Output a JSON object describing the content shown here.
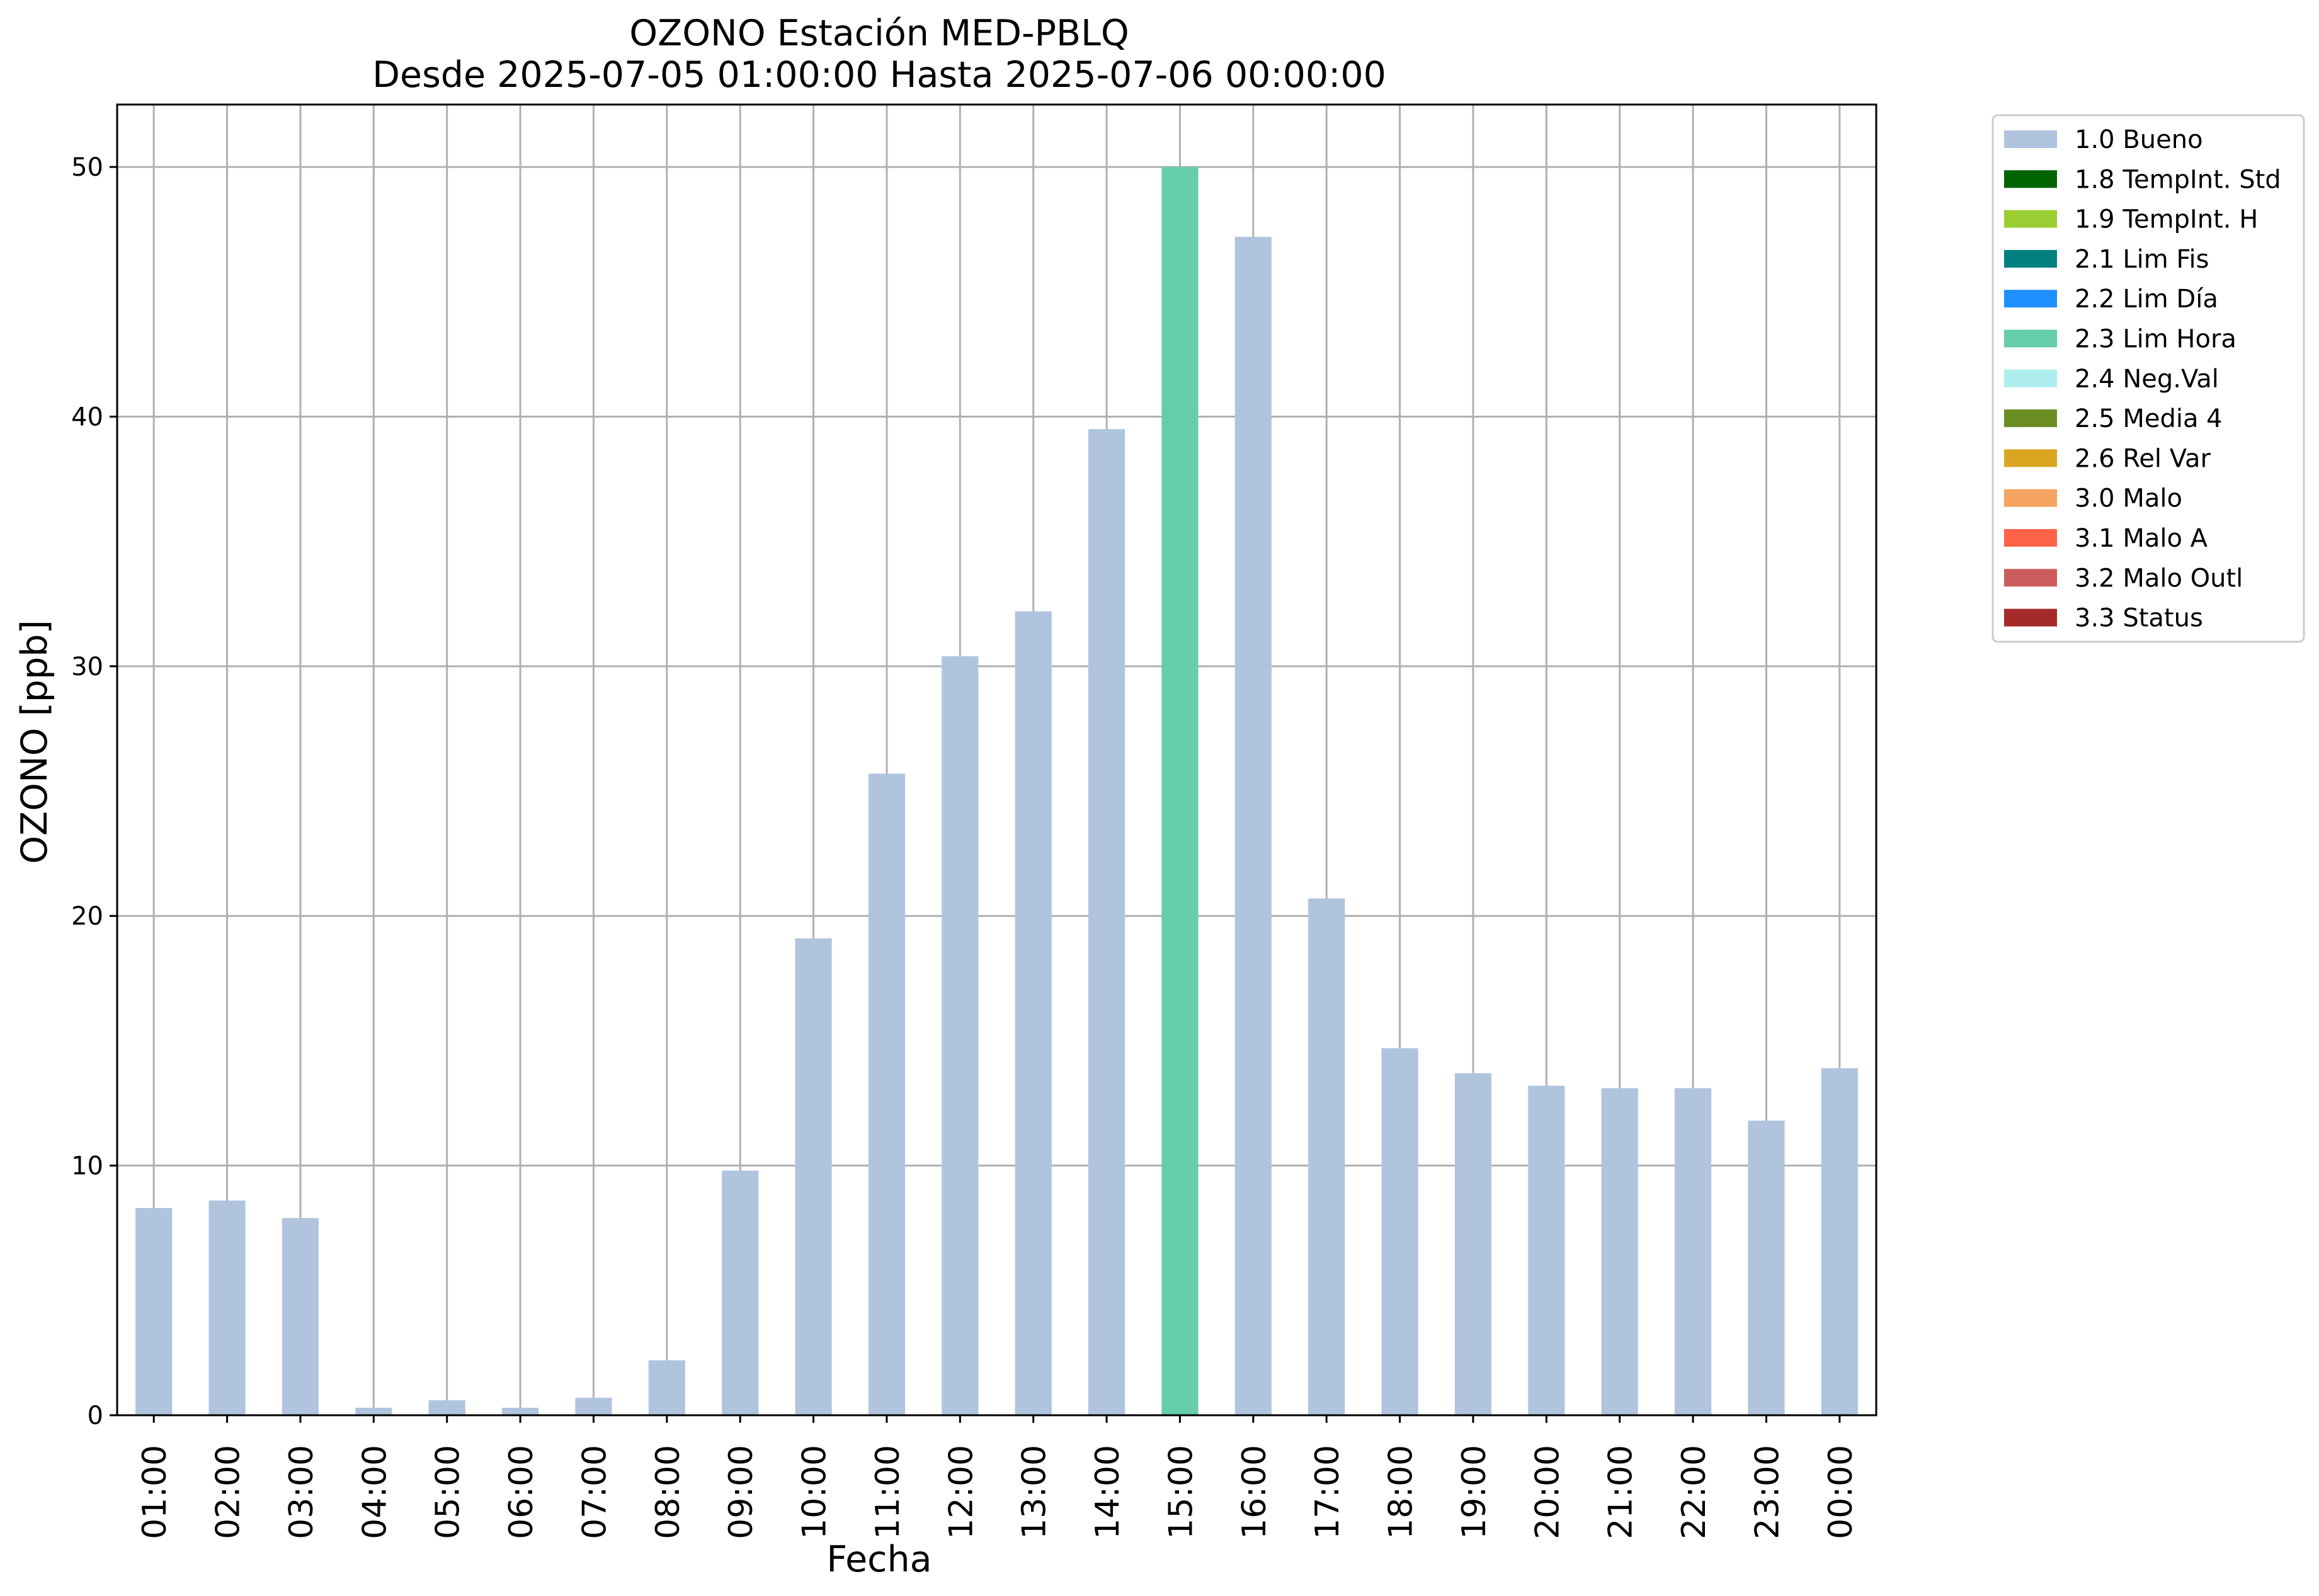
{
  "chart_data": {
    "type": "bar",
    "title": "OZONO Estación MED-PBLQ",
    "subtitle": "Desde 2025-07-05 01:00:00 Hasta 2025-07-06 00:00:00",
    "xlabel": "Fecha",
    "ylabel": "OZONO [ppb]",
    "ylim": [
      0,
      52.5
    ],
    "yticks": [
      "0",
      "10",
      "20",
      "30",
      "40",
      "50"
    ],
    "grid": true,
    "legend_position": "outside-top-right",
    "categories": [
      "01:00",
      "02:00",
      "03:00",
      "04:00",
      "05:00",
      "06:00",
      "07:00",
      "08:00",
      "09:00",
      "10:00",
      "11:00",
      "12:00",
      "13:00",
      "14:00",
      "15:00",
      "16:00",
      "17:00",
      "18:00",
      "19:00",
      "20:00",
      "21:00",
      "22:00",
      "23:00",
      "00:00"
    ],
    "values": [
      8.3,
      8.6,
      7.9,
      0.3,
      0.6,
      0.3,
      0.7,
      2.2,
      9.8,
      19.1,
      25.7,
      30.4,
      32.2,
      39.5,
      50.0,
      47.2,
      20.7,
      14.7,
      13.7,
      13.2,
      13.1,
      13.1,
      11.8,
      13.9
    ],
    "flags": [
      "1.0 Bueno",
      "1.0 Bueno",
      "1.0 Bueno",
      "1.0 Bueno",
      "1.0 Bueno",
      "1.0 Bueno",
      "1.0 Bueno",
      "1.0 Bueno",
      "1.0 Bueno",
      "1.0 Bueno",
      "1.0 Bueno",
      "1.0 Bueno",
      "1.0 Bueno",
      "1.0 Bueno",
      "2.3 Lim Hora",
      "1.0 Bueno",
      "1.0 Bueno",
      "1.0 Bueno",
      "1.0 Bueno",
      "1.0 Bueno",
      "1.0 Bueno",
      "1.0 Bueno",
      "1.0 Bueno",
      "1.0 Bueno"
    ],
    "legend": [
      {
        "label": "1.0 Bueno",
        "color": "#b0c4de"
      },
      {
        "label": "1.8 TempInt. Std",
        "color": "#006400"
      },
      {
        "label": "1.9 TempInt. H",
        "color": "#9acd32"
      },
      {
        "label": "2.1 Lim Fis",
        "color": "#008080"
      },
      {
        "label": "2.2 Lim Día",
        "color": "#1e90ff"
      },
      {
        "label": "2.3 Lim Hora",
        "color": "#66cdaa"
      },
      {
        "label": "2.4 Neg.Val",
        "color": "#afeeee"
      },
      {
        "label": "2.5 Media 4",
        "color": "#6b8e23"
      },
      {
        "label": "2.6 Rel Var",
        "color": "#daa520"
      },
      {
        "label": "3.0 Malo",
        "color": "#f4a460"
      },
      {
        "label": "3.1 Malo A",
        "color": "#ff6347"
      },
      {
        "label": "3.2 Malo Outl",
        "color": "#cd5c5c"
      },
      {
        "label": "3.3 Status",
        "color": "#a52a2a"
      }
    ]
  }
}
